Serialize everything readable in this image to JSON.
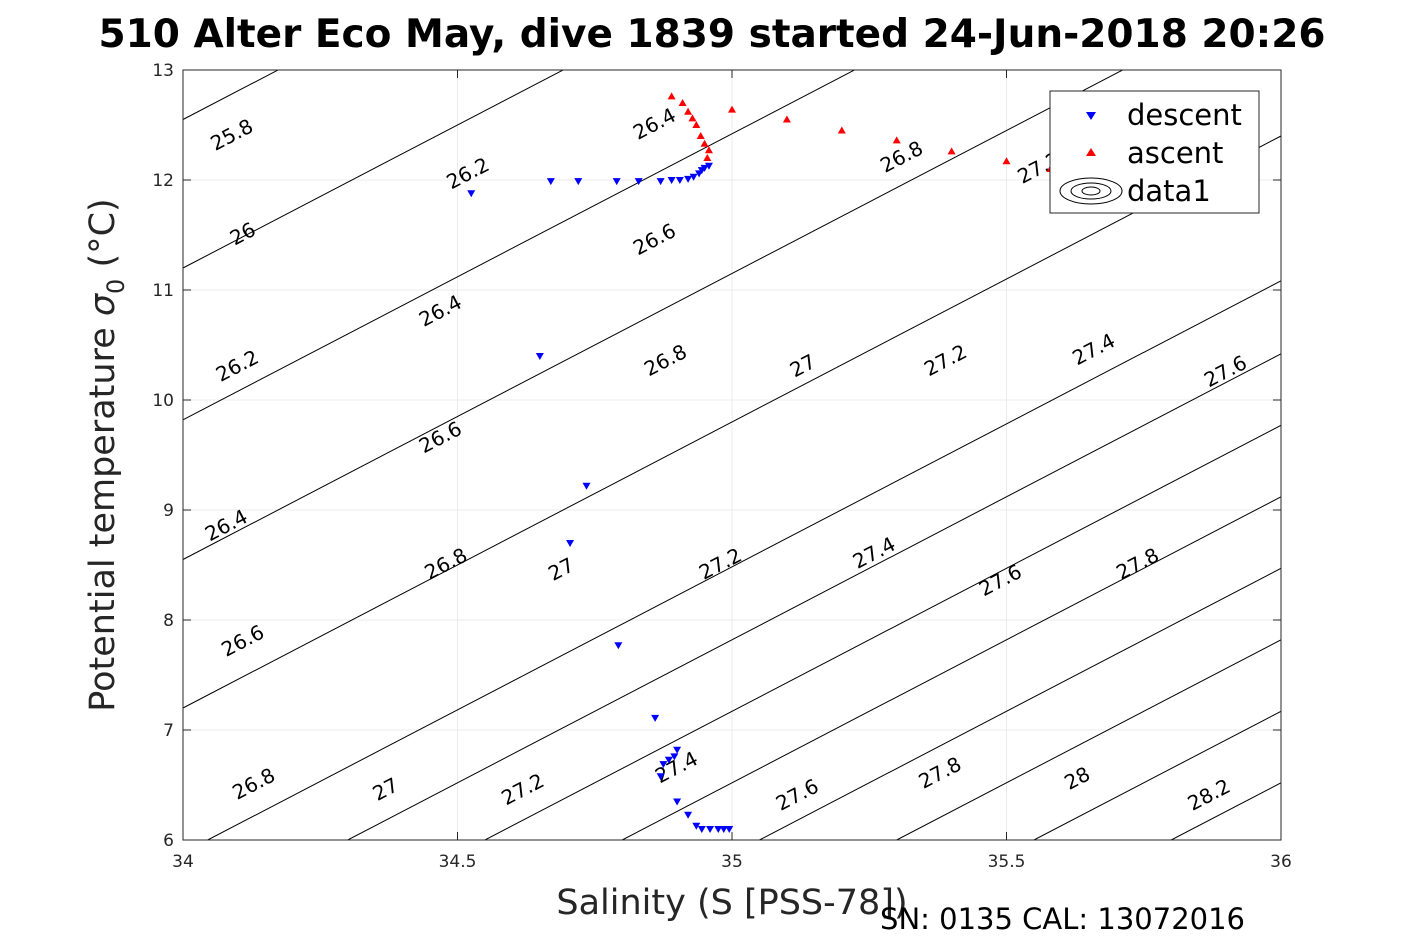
{
  "chart_data": {
    "type": "scatter",
    "title": "510 Alter Eco May, dive 1839 started 24-Jun-2018 20:26",
    "xlabel": "Salinity (S [PSS-78])",
    "ylabel": "Potential temperature",
    "ylabel_symbol": "σ",
    "ylabel_sub": "0",
    "ylabel_unit": "(°C)",
    "footer": "SN: 0135  CAL: 13072016",
    "xlim": [
      34,
      36
    ],
    "ylim": [
      6,
      13
    ],
    "xticks": [
      "34",
      "34.5",
      "35",
      "35.5",
      "36"
    ],
    "yticks": [
      "6",
      "7",
      "8",
      "9",
      "10",
      "11",
      "12",
      "13"
    ],
    "grid": true,
    "legend_position": "top-right",
    "legend": [
      "descent",
      "ascent",
      "data1"
    ],
    "series": [
      {
        "name": "descent",
        "marker": "triangle-down",
        "color": "#0000ff",
        "points": [
          [
            34.525,
            11.88
          ],
          [
            34.67,
            11.99
          ],
          [
            34.72,
            11.99
          ],
          [
            34.79,
            11.99
          ],
          [
            34.83,
            11.99
          ],
          [
            34.87,
            11.99
          ],
          [
            34.89,
            12.0
          ],
          [
            34.905,
            12.0
          ],
          [
            34.92,
            12.01
          ],
          [
            34.93,
            12.03
          ],
          [
            34.94,
            12.06
          ],
          [
            34.945,
            12.09
          ],
          [
            34.95,
            12.11
          ],
          [
            34.958,
            12.13
          ],
          [
            34.65,
            10.4
          ],
          [
            34.735,
            9.22
          ],
          [
            34.705,
            8.7
          ],
          [
            34.793,
            7.77
          ],
          [
            34.86,
            7.11
          ],
          [
            34.9,
            6.82
          ],
          [
            34.895,
            6.76
          ],
          [
            34.885,
            6.73
          ],
          [
            34.875,
            6.69
          ],
          [
            34.87,
            6.58
          ],
          [
            34.9,
            6.35
          ],
          [
            34.92,
            6.23
          ],
          [
            34.935,
            6.13
          ],
          [
            34.945,
            6.1
          ],
          [
            34.96,
            6.1
          ],
          [
            34.975,
            6.1
          ],
          [
            34.985,
            6.1
          ],
          [
            34.995,
            6.1
          ]
        ]
      },
      {
        "name": "ascent",
        "marker": "triangle-up",
        "color": "#ff0000",
        "points": [
          [
            34.955,
            12.2
          ],
          [
            34.958,
            12.27
          ],
          [
            34.95,
            12.33
          ],
          [
            34.943,
            12.4
          ],
          [
            34.935,
            12.5
          ],
          [
            34.928,
            12.56
          ],
          [
            34.92,
            12.62
          ],
          [
            34.91,
            12.7
          ],
          [
            34.89,
            12.76
          ],
          [
            35.0,
            12.64
          ],
          [
            35.1,
            12.55
          ],
          [
            35.2,
            12.45
          ],
          [
            35.3,
            12.36
          ],
          [
            35.4,
            12.26
          ],
          [
            35.5,
            12.17
          ],
          [
            35.58,
            12.1
          ],
          [
            35.6,
            12.06
          ]
        ]
      }
    ],
    "isopycnals": [
      {
        "label": "25.8",
        "x0": 34.0,
        "y0": 12.55
      },
      {
        "label": "26",
        "x0": 34.0,
        "y0": 11.2
      },
      {
        "label": "26.2",
        "x0": 34.0,
        "y0": 9.82
      },
      {
        "label": "26.4",
        "x0": 34.0,
        "y0": 8.55
      },
      {
        "label": "26.6",
        "x0": 34.0,
        "y0": 7.2
      },
      {
        "label": "26.8",
        "x0": 34.045,
        "y0": 6.0
      },
      {
        "label": "27",
        "x0": 34.3,
        "y0": 6.0
      },
      {
        "label": "27.2",
        "x0": 34.55,
        "y0": 6.0
      },
      {
        "label": "27.4",
        "x0": 34.8,
        "y0": 6.0
      },
      {
        "label": "27.6",
        "x0": 35.05,
        "y0": 6.0
      },
      {
        "label": "27.8",
        "x0": 35.3,
        "y0": 6.0
      },
      {
        "label": "28",
        "x0": 35.55,
        "y0": 6.0
      },
      {
        "label": "28.2",
        "x0": 35.8,
        "y0": 6.0
      }
    ],
    "isopycnal_labels": [
      {
        "text": "25.8",
        "x": 34.09,
        "y": 12.4
      },
      {
        "text": "26.2",
        "x": 34.52,
        "y": 12.05
      },
      {
        "text": "26.4",
        "x": 34.86,
        "y": 12.5
      },
      {
        "text": "26",
        "x": 34.11,
        "y": 11.5
      },
      {
        "text": "26.6",
        "x": 34.86,
        "y": 11.45
      },
      {
        "text": "26.8",
        "x": 35.31,
        "y": 12.2
      },
      {
        "text": "27.2",
        "x": 35.56,
        "y": 12.1
      },
      {
        "text": "26.4",
        "x": 34.47,
        "y": 10.8
      },
      {
        "text": "26.2",
        "x": 34.1,
        "y": 10.3
      },
      {
        "text": "26.8",
        "x": 34.88,
        "y": 10.35
      },
      {
        "text": "27",
        "x": 35.13,
        "y": 10.3
      },
      {
        "text": "27.2",
        "x": 35.39,
        "y": 10.35
      },
      {
        "text": "27.4",
        "x": 35.66,
        "y": 10.45
      },
      {
        "text": "27.6",
        "x": 35.9,
        "y": 10.25
      },
      {
        "text": "26.6",
        "x": 34.47,
        "y": 9.65
      },
      {
        "text": "26.4",
        "x": 34.08,
        "y": 8.85
      },
      {
        "text": "26.8",
        "x": 34.48,
        "y": 8.5
      },
      {
        "text": "27",
        "x": 34.69,
        "y": 8.45
      },
      {
        "text": "27.2",
        "x": 34.98,
        "y": 8.5
      },
      {
        "text": "27.4",
        "x": 35.26,
        "y": 8.6
      },
      {
        "text": "27.6",
        "x": 35.49,
        "y": 8.35
      },
      {
        "text": "27.8",
        "x": 35.74,
        "y": 8.5
      },
      {
        "text": "26.6",
        "x": 34.11,
        "y": 7.8
      },
      {
        "text": "26.8",
        "x": 34.13,
        "y": 6.5
      },
      {
        "text": "27",
        "x": 34.37,
        "y": 6.45
      },
      {
        "text": "27.2",
        "x": 34.62,
        "y": 6.45
      },
      {
        "text": "27.4",
        "x": 34.9,
        "y": 6.65
      },
      {
        "text": "27.6",
        "x": 35.12,
        "y": 6.4
      },
      {
        "text": "27.8",
        "x": 35.38,
        "y": 6.6
      },
      {
        "text": "28",
        "x": 35.63,
        "y": 6.55
      },
      {
        "text": "28.2",
        "x": 35.87,
        "y": 6.4
      }
    ]
  },
  "colors": {
    "descent": "#0000ff",
    "ascent": "#ff0000",
    "grid": "#ebebeb",
    "axis": "#262626"
  }
}
